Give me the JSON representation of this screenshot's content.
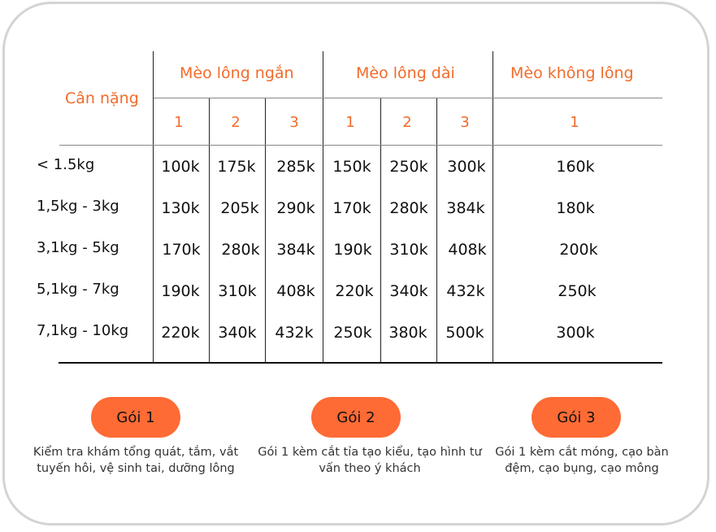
{
  "table": {
    "weight_header": "Cân nặng",
    "groups": [
      {
        "label": "Mèo lông ngắn",
        "levels": [
          "1",
          "2",
          "3"
        ]
      },
      {
        "label": "Mèo lông dài",
        "levels": [
          "1",
          "2",
          "3"
        ]
      },
      {
        "label": "Mèo không lông",
        "levels": [
          "1"
        ]
      }
    ],
    "rows": [
      {
        "weight": "< 1.5kg",
        "prices": [
          "100k",
          "175k",
          "285k",
          "150k",
          "250k",
          "300k",
          "160k"
        ]
      },
      {
        "weight": "1,5kg - 3kg",
        "prices": [
          "130k",
          "205k",
          "290k",
          "170k",
          "280k",
          "384k",
          "180k"
        ]
      },
      {
        "weight": "3,1kg - 5kg",
        "prices": [
          "170k",
          "280k",
          "384k",
          "190k",
          "310k",
          "408k",
          "200k"
        ]
      },
      {
        "weight": "5,1kg - 7kg",
        "prices": [
          "190k",
          "310k",
          "408k",
          "220k",
          "340k",
          "432k",
          "250k"
        ]
      },
      {
        "weight": "7,1kg - 10kg",
        "prices": [
          "220k",
          "340k",
          "432k",
          "250k",
          "380k",
          "500k",
          "300k"
        ]
      }
    ]
  },
  "packages": [
    {
      "label": "Gói 1",
      "description": "Kiểm tra khám tổng quát, tắm, vắt tuyến hôi, vệ sinh tai, dưỡng lông"
    },
    {
      "label": "Gói 2",
      "description": "Gói 1 kèm cắt tỉa tạo kiểu, tạo hình tư vấn theo ý khách"
    },
    {
      "label": "Gói 3",
      "description": "Gói 1 kèm cắt móng, cạo bàn đệm, cạo bụng, cạo mông"
    }
  ],
  "colors": {
    "accent": "#f26b2a",
    "button": "#ff6b35",
    "border": "#d4d4d4"
  }
}
